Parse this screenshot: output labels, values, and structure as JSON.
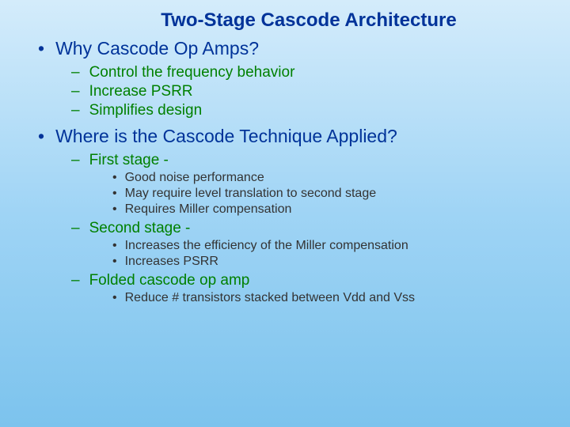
{
  "colors": {
    "title": "#003399",
    "level1": "#003399",
    "level2": "#008000",
    "level3": "#333333",
    "background_gradient_top": "#d4ecfb",
    "background_gradient_mid": "#9fd4f5",
    "background_gradient_bottom": "#7cc3ed"
  },
  "typography": {
    "font_family": "Arial",
    "title_fontsize": 24,
    "level1_fontsize": 23,
    "level2_fontsize": 19,
    "level3_fontsize": 16,
    "title_weight": "bold"
  },
  "markers": {
    "level1": "•",
    "level2": "–",
    "level3": "•"
  },
  "title": "Two-Stage Cascode Architecture",
  "sections": [
    {
      "heading": "Why Cascode Op Amps?",
      "items": [
        {
          "text": "Control the frequency behavior",
          "sub": []
        },
        {
          "text": "Increase PSRR",
          "sub": []
        },
        {
          "text": "Simplifies design",
          "sub": []
        }
      ]
    },
    {
      "heading": "Where is the Cascode Technique Applied?",
      "items": [
        {
          "text": "First stage -",
          "sub": [
            "Good noise performance",
            "May require level translation to second stage",
            "Requires Miller compensation"
          ]
        },
        {
          "text": "Second stage -",
          "sub": [
            "Increases the efficiency of the Miller compensation",
            "Increases PSRR"
          ]
        },
        {
          "text": "Folded cascode op amp",
          "sub": [
            "Reduce # transistors stacked between Vdd and Vss"
          ]
        }
      ]
    }
  ]
}
